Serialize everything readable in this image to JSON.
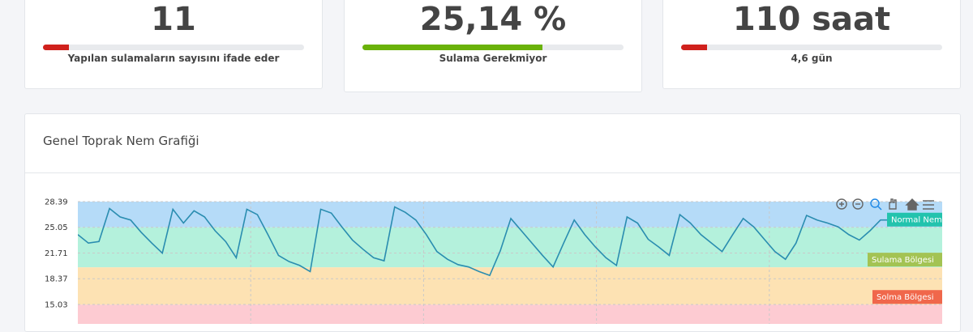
{
  "cards": [
    {
      "value": "11",
      "subtitle": "Yapılan sulamaların sayısını ifade eder",
      "progress": 10,
      "color": "#d0211c"
    },
    {
      "value": "25,14 %",
      "subtitle": "Sulama Gerekmiyor",
      "progress": 69,
      "color": "#6ab20a"
    },
    {
      "value": "110 saat",
      "subtitle": "4,6 gün",
      "progress": 10,
      "color": "#d0211c"
    }
  ],
  "chart_data": {
    "type": "line",
    "title": "Genel Toprak Nem Grafiği",
    "series": [
      {
        "color": "#2a8db0",
        "values": [
          24.1,
          23.0,
          23.2,
          27.5,
          26.4,
          26.0,
          24.4,
          23.0,
          21.7,
          27.4,
          25.6,
          27.2,
          26.4,
          24.6,
          23.2,
          21.1,
          27.4,
          26.7,
          24.1,
          21.4,
          20.6,
          20.1,
          19.3,
          27.4,
          26.9,
          25.1,
          23.4,
          22.2,
          21.1,
          20.7,
          27.7,
          27.0,
          26.0,
          24.1,
          21.9,
          20.9,
          20.2,
          19.9,
          19.3,
          18.8,
          22.0,
          26.2,
          24.6,
          23.0,
          21.4,
          19.9,
          23.0,
          26.0,
          24.1,
          22.5,
          21.1,
          20.1,
          26.4,
          25.6,
          23.5,
          22.5,
          21.4,
          26.7,
          25.6,
          24.1,
          23.0,
          21.9,
          24.1,
          26.2,
          25.1,
          23.5,
          21.9,
          20.9,
          23.0,
          26.6,
          26.0,
          25.6,
          25.1,
          24.1,
          23.4,
          24.6,
          26.0,
          26.0,
          26.2,
          26.0
        ]
      }
    ],
    "ylim": [
      12.5,
      28.39
    ],
    "yticks": [
      28.39,
      25.05,
      21.71,
      18.37,
      15.03
    ],
    "grid": true,
    "bands": [
      {
        "from": 25.05,
        "to": 28.39,
        "color": "#b5dbf8",
        "label": "Normal Nem",
        "label_color": "#22c3ad"
      },
      {
        "from": 19.85,
        "to": 25.05,
        "color": "#b4f1dc",
        "label": "Sulama Bölgesi",
        "label_color": "#a3c353"
      },
      {
        "from": 15.0,
        "to": 19.85,
        "color": "#fde2b3",
        "label": "Solma Bölgesi",
        "label_color": "#f0674b"
      },
      {
        "from": 12.5,
        "to": 15.0,
        "color": "#fdcbd2"
      }
    ]
  }
}
